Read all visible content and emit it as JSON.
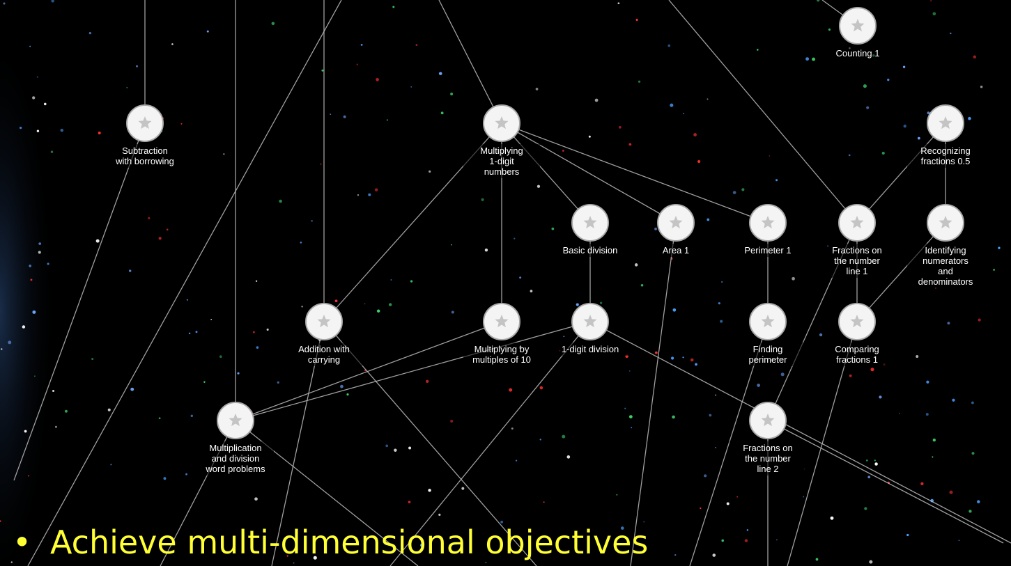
{
  "nodes": [
    {
      "label": [
        "Counting 1"
      ]
    },
    {
      "label": [
        "Subtraction",
        "with borrowing"
      ]
    },
    {
      "label": [
        "Multiplying",
        "1-digit",
        "numbers"
      ]
    },
    {
      "label": [
        "Recognizing",
        "fractions 0.5"
      ]
    },
    {
      "label": [
        "Basic division"
      ]
    },
    {
      "label": [
        "Area 1"
      ]
    },
    {
      "label": [
        "Perimeter 1"
      ]
    },
    {
      "label": [
        "Fractions on",
        "the number",
        "line 1"
      ]
    },
    {
      "label": [
        "Identifying",
        "numerators",
        "and",
        "denominators"
      ]
    },
    {
      "label": [
        "Addition with",
        "carrying"
      ]
    },
    {
      "label": [
        "Multiplying by",
        "multiples of 10"
      ]
    },
    {
      "label": [
        "1-digit division"
      ]
    },
    {
      "label": [
        "Finding",
        "perimeter"
      ]
    },
    {
      "label": [
        "Comparing",
        "fractions 1"
      ]
    },
    {
      "label": [
        "Multiplication",
        "and division",
        "word problems"
      ]
    },
    {
      "label": [
        "Fractions on",
        "the number",
        "line 2"
      ]
    }
  ],
  "bullet": {
    "marker": "•",
    "text": "Achieve multi-dimensional objectives"
  }
}
